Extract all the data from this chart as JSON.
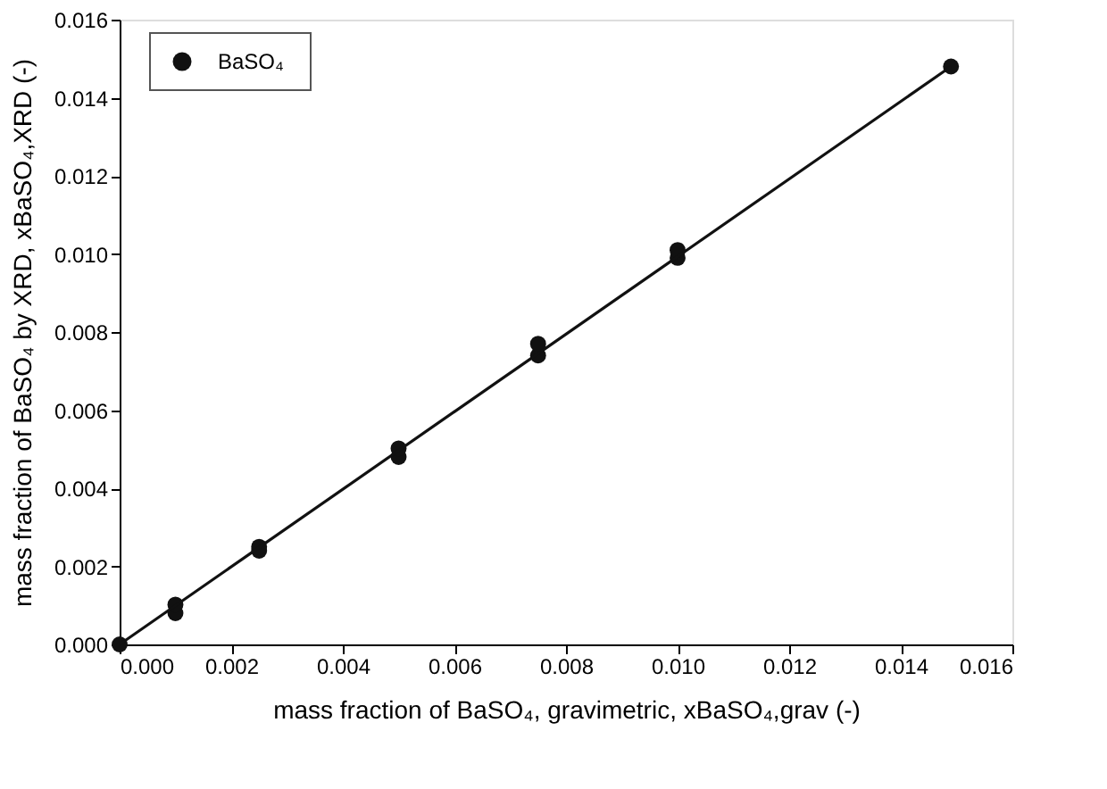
{
  "chart_data": {
    "type": "scatter",
    "xlabel": "mass fraction of BaSO₄, gravimetric, xBaSO₄,grav (-)",
    "ylabel": "mass fraction of BaSO₄ by XRD, xBaSO₄,XRD (-)",
    "series": [
      {
        "name": "BaSO₄",
        "color": "#111111",
        "marker": "circle",
        "x": [
          0,
          0.001,
          0.001,
          0.0025,
          0.0025,
          0.005,
          0.005,
          0.0075,
          0.0075,
          0.01,
          0.01,
          0.0149
        ],
        "values": [
          0,
          0.0008,
          0.00102,
          0.0024,
          0.0025,
          0.0048,
          0.00502,
          0.0074,
          0.0077,
          0.0099,
          0.0101,
          0.0148
        ]
      },
      {
        "type": "line",
        "color": "#111111",
        "x": [
          0,
          0.0149
        ],
        "values": [
          0,
          0.0148
        ]
      }
    ],
    "xlim": [
      0,
      0.016
    ],
    "ylim": [
      0,
      0.016
    ],
    "xticks": [
      {
        "value": 0,
        "label": "0.000"
      },
      {
        "value": 0.002,
        "label": "0.002"
      },
      {
        "value": 0.004,
        "label": "0.004"
      },
      {
        "value": 0.006,
        "label": "0.006"
      },
      {
        "value": 0.008,
        "label": "0.008"
      },
      {
        "value": 0.01,
        "label": "0.010"
      },
      {
        "value": 0.012,
        "label": "0.012"
      },
      {
        "value": 0.014,
        "label": "0.014"
      },
      {
        "value": 0.016,
        "label": "0.016"
      }
    ],
    "yticks": [
      {
        "value": 0,
        "label": "0.000"
      },
      {
        "value": 0.002,
        "label": "0.002"
      },
      {
        "value": 0.004,
        "label": "0.004"
      },
      {
        "value": 0.006,
        "label": "0.006"
      },
      {
        "value": 0.008,
        "label": "0.008"
      },
      {
        "value": 0.01,
        "label": "0.010"
      },
      {
        "value": 0.012,
        "label": "0.012"
      },
      {
        "value": 0.014,
        "label": "0.014"
      },
      {
        "value": 0.016,
        "label": "0.016"
      }
    ],
    "grid": false,
    "legend": "top left"
  }
}
